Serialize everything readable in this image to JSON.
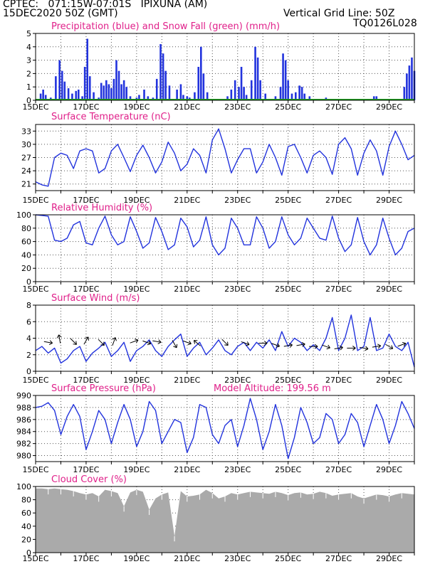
{
  "header": {
    "line1": "CPTEC:   071:15W-07:01S   IPIXUNA (AM)",
    "line2": "15DEC2020 50Z (GMT)",
    "grid_note": "Vertical Grid Line: 50Z",
    "code": "TQ0126L028",
    "altitude": "Model Altitude: 199.56 m",
    "color_header": "#f08a28",
    "color_title": "#e0208a",
    "color_series": "#2233dd"
  },
  "x_axis": {
    "days": [
      "15DEC",
      "17DEC",
      "19DEC",
      "21DEC",
      "23DEC",
      "25DEC",
      "27DEC",
      "29DEC"
    ],
    "start_day": 15,
    "end_day": 30
  },
  "chart_data": [
    {
      "id": "precip",
      "type": "bar",
      "title": "Precipitation (blue) and Snow Fall (green) (mm/h)",
      "ylim": [
        0,
        5
      ],
      "yticks": [
        "0",
        "1",
        "2",
        "3",
        "4",
        "5"
      ],
      "grid": true,
      "series": [
        {
          "name": "precipitation",
          "color": "#2233dd",
          "points": [
            [
              15.2,
              0.5
            ],
            [
              15.3,
              0.8
            ],
            [
              15.4,
              0.4
            ],
            [
              15.6,
              0.2
            ],
            [
              15.8,
              1.8
            ],
            [
              15.95,
              3.0
            ],
            [
              16.05,
              2.2
            ],
            [
              16.15,
              1.4
            ],
            [
              16.3,
              0.9
            ],
            [
              16.45,
              0.5
            ],
            [
              16.6,
              0.7
            ],
            [
              16.7,
              0.8
            ],
            [
              16.85,
              0.3
            ],
            [
              16.95,
              2.5
            ],
            [
              17.05,
              4.6
            ],
            [
              17.15,
              1.8
            ],
            [
              17.3,
              0.6
            ],
            [
              17.5,
              0.2
            ],
            [
              17.6,
              1.3
            ],
            [
              17.7,
              1.1
            ],
            [
              17.8,
              1.5
            ],
            [
              17.9,
              1.2
            ],
            [
              18.0,
              0.9
            ],
            [
              18.1,
              1.6
            ],
            [
              18.2,
              3.0
            ],
            [
              18.3,
              2.2
            ],
            [
              18.4,
              1.2
            ],
            [
              18.5,
              1.5
            ],
            [
              18.6,
              1.0
            ],
            [
              18.75,
              0.3
            ],
            [
              19.0,
              0.2
            ],
            [
              19.1,
              0.4
            ],
            [
              19.3,
              0.8
            ],
            [
              19.45,
              0.3
            ],
            [
              19.65,
              0.2
            ],
            [
              19.8,
              1.6
            ],
            [
              19.95,
              4.2
            ],
            [
              20.05,
              3.5
            ],
            [
              20.15,
              2.2
            ],
            [
              20.3,
              1.1
            ],
            [
              20.6,
              0.8
            ],
            [
              20.75,
              1.2
            ],
            [
              20.85,
              0.4
            ],
            [
              21.0,
              0.3
            ],
            [
              21.1,
              0.2
            ],
            [
              21.3,
              0.6
            ],
            [
              21.45,
              2.5
            ],
            [
              21.55,
              4.0
            ],
            [
              21.65,
              2.0
            ],
            [
              21.8,
              0.6
            ],
            [
              22.6,
              0.3
            ],
            [
              22.75,
              0.8
            ],
            [
              22.9,
              1.5
            ],
            [
              23.05,
              1.0
            ],
            [
              23.15,
              2.5
            ],
            [
              23.25,
              1.0
            ],
            [
              23.35,
              0.4
            ],
            [
              23.55,
              1.5
            ],
            [
              23.7,
              4.0
            ],
            [
              23.8,
              3.2
            ],
            [
              23.9,
              1.5
            ],
            [
              24.1,
              0.5
            ],
            [
              24.5,
              0.3
            ],
            [
              24.7,
              1.0
            ],
            [
              24.8,
              3.5
            ],
            [
              24.9,
              3.0
            ],
            [
              25.0,
              1.5
            ],
            [
              25.15,
              0.5
            ],
            [
              25.3,
              0.6
            ],
            [
              25.45,
              1.1
            ],
            [
              25.55,
              1.0
            ],
            [
              25.65,
              0.5
            ],
            [
              25.85,
              0.3
            ],
            [
              26.5,
              0.2
            ],
            [
              28.4,
              0.3
            ],
            [
              28.5,
              0.3
            ],
            [
              29.6,
              1.0
            ],
            [
              29.7,
              2.0
            ],
            [
              29.8,
              2.6
            ],
            [
              29.9,
              3.2
            ],
            [
              30.0,
              2.2
            ]
          ]
        },
        {
          "name": "snow fall",
          "color": "#22a022",
          "points": []
        }
      ]
    },
    {
      "id": "temp",
      "type": "line",
      "title": "Surface Temperature (nC)",
      "ylim": [
        19.5,
        34.5
      ],
      "yticks": [
        "21",
        "24",
        "27",
        "30",
        "33"
      ],
      "ytick_values": [
        21,
        24,
        27,
        30,
        33
      ],
      "grid": true,
      "x": [
        15.0,
        15.25,
        15.5,
        15.75,
        16.0,
        16.25,
        16.5,
        16.75,
        17.0,
        17.25,
        17.5,
        17.75,
        18.0,
        18.25,
        18.5,
        18.75,
        19.0,
        19.25,
        19.5,
        19.75,
        20.0,
        20.25,
        20.5,
        20.75,
        21.0,
        21.25,
        21.5,
        21.75,
        22.0,
        22.25,
        22.5,
        22.75,
        23.0,
        23.25,
        23.5,
        23.75,
        24.0,
        24.25,
        24.5,
        24.75,
        25.0,
        25.25,
        25.5,
        25.75,
        26.0,
        26.25,
        26.5,
        26.75,
        27.0,
        27.25,
        27.5,
        27.75,
        28.0,
        28.25,
        28.5,
        28.75,
        29.0,
        29.25,
        29.5,
        29.75,
        30.0
      ],
      "y": [
        21.5,
        20.8,
        20.5,
        27.0,
        28.0,
        27.5,
        24.5,
        28.5,
        29.0,
        28.5,
        23.5,
        24.5,
        28.5,
        30.0,
        27.0,
        23.8,
        27.5,
        29.8,
        27.0,
        23.5,
        26.0,
        30.5,
        28.0,
        24.0,
        25.5,
        29.0,
        27.5,
        23.5,
        31.0,
        33.5,
        29.0,
        23.5,
        26.5,
        29.0,
        29.0,
        23.5,
        26.0,
        30.0,
        27.0,
        23.0,
        29.5,
        30.0,
        27.0,
        23.5,
        27.5,
        28.5,
        27.0,
        23.2,
        30.0,
        31.5,
        29.0,
        23.0,
        28.0,
        31.0,
        28.5,
        23.0,
        29.5,
        33.0,
        30.0,
        26.5,
        27.5
      ]
    },
    {
      "id": "rh",
      "type": "line",
      "title": "Relative Humidity (%)",
      "ylim": [
        0,
        100
      ],
      "yticks": [
        "0",
        "20",
        "40",
        "60",
        "80",
        "100"
      ],
      "ytick_values": [
        0,
        20,
        40,
        60,
        80,
        100
      ],
      "grid": true,
      "x": [
        15.0,
        15.25,
        15.5,
        15.75,
        16.0,
        16.25,
        16.5,
        16.75,
        17.0,
        17.25,
        17.5,
        17.75,
        18.0,
        18.25,
        18.5,
        18.75,
        19.0,
        19.25,
        19.5,
        19.75,
        20.0,
        20.25,
        20.5,
        20.75,
        21.0,
        21.25,
        21.5,
        21.75,
        22.0,
        22.25,
        22.5,
        22.75,
        23.0,
        23.25,
        23.5,
        23.75,
        24.0,
        24.25,
        24.5,
        24.75,
        25.0,
        25.25,
        25.5,
        25.75,
        26.0,
        26.25,
        26.5,
        26.75,
        27.0,
        27.25,
        27.5,
        27.75,
        28.0,
        28.25,
        28.5,
        28.75,
        29.0,
        29.25,
        29.5,
        29.75,
        30.0
      ],
      "y": [
        100,
        99,
        98,
        62,
        60,
        65,
        85,
        90,
        58,
        55,
        80,
        98,
        70,
        55,
        60,
        97,
        75,
        50,
        58,
        96,
        75,
        48,
        55,
        95,
        82,
        52,
        62,
        97,
        55,
        40,
        50,
        95,
        80,
        55,
        55,
        97,
        80,
        50,
        60,
        97,
        70,
        55,
        65,
        95,
        80,
        65,
        62,
        98,
        65,
        45,
        55,
        96,
        60,
        40,
        55,
        95,
        65,
        40,
        50,
        75,
        80
      ]
    },
    {
      "id": "wind",
      "type": "line",
      "title": "Surface Wind (m/s)",
      "ylim": [
        0,
        8
      ],
      "yticks": [
        "0",
        "2",
        "4",
        "6",
        "8"
      ],
      "ytick_values": [
        0,
        2,
        4,
        6,
        8
      ],
      "grid": true,
      "x": [
        15.0,
        15.25,
        15.5,
        15.75,
        16.0,
        16.25,
        16.5,
        16.75,
        17.0,
        17.25,
        17.5,
        17.75,
        18.0,
        18.25,
        18.5,
        18.75,
        19.0,
        19.25,
        19.5,
        19.75,
        20.0,
        20.25,
        20.5,
        20.75,
        21.0,
        21.25,
        21.5,
        21.75,
        22.0,
        22.25,
        22.5,
        22.75,
        23.0,
        23.25,
        23.5,
        23.75,
        24.0,
        24.25,
        24.5,
        24.75,
        25.0,
        25.25,
        25.5,
        25.75,
        26.0,
        26.25,
        26.5,
        26.75,
        27.0,
        27.25,
        27.5,
        27.75,
        28.0,
        28.25,
        28.5,
        28.75,
        29.0,
        29.25,
        29.5,
        29.75,
        30.0
      ],
      "y": [
        2.5,
        3.0,
        2.2,
        2.8,
        1.0,
        1.5,
        2.5,
        3.0,
        1.2,
        2.2,
        2.8,
        3.5,
        1.8,
        2.5,
        3.5,
        1.2,
        2.5,
        3.0,
        3.8,
        2.5,
        1.8,
        3.0,
        3.8,
        4.5,
        1.8,
        2.8,
        3.5,
        2.0,
        2.8,
        3.8,
        2.5,
        2.0,
        3.0,
        3.5,
        2.5,
        3.5,
        2.8,
        3.8,
        2.5,
        4.8,
        3.0,
        4.0,
        3.5,
        2.5,
        3.2,
        2.5,
        4.0,
        6.5,
        2.5,
        4.0,
        6.8,
        2.5,
        3.0,
        6.5,
        2.5,
        2.8,
        4.5,
        3.0,
        2.5,
        3.5,
        0.5
      ],
      "arrows": [
        [
          15.5,
          3.5,
          10
        ],
        [
          15.95,
          3.9,
          -100
        ],
        [
          16.5,
          3.6,
          45
        ],
        [
          17.0,
          3.7,
          -60
        ],
        [
          17.6,
          3.5,
          45
        ],
        [
          18.1,
          3.6,
          -70
        ],
        [
          18.9,
          3.6,
          -20
        ],
        [
          19.4,
          3.5,
          20
        ],
        [
          19.8,
          3.6,
          10
        ],
        [
          20.5,
          3.3,
          60
        ],
        [
          21.0,
          3.5,
          20
        ],
        [
          21.4,
          3.4,
          -140
        ],
        [
          22.5,
          3.5,
          45
        ],
        [
          23.3,
          3.4,
          20
        ],
        [
          24.0,
          3.4,
          0
        ],
        [
          24.5,
          3.2,
          20
        ],
        [
          25.0,
          3.1,
          -10
        ],
        [
          25.5,
          3.2,
          -10
        ],
        [
          26.0,
          3.0,
          0
        ],
        [
          26.5,
          3.0,
          20
        ],
        [
          27.0,
          2.8,
          -10
        ],
        [
          27.5,
          2.8,
          0
        ],
        [
          28.0,
          2.8,
          10
        ],
        [
          28.5,
          3.0,
          -10
        ],
        [
          29.0,
          3.0,
          30
        ],
        [
          29.5,
          3.2,
          -20
        ]
      ]
    },
    {
      "id": "pressure",
      "type": "line",
      "title": "Surface Pressure (hPa)",
      "ylim": [
        979,
        990
      ],
      "yticks": [
        "980",
        "982",
        "984",
        "986",
        "988",
        "990"
      ],
      "ytick_values": [
        980,
        982,
        984,
        986,
        988,
        990
      ],
      "grid": true,
      "x": [
        15.0,
        15.25,
        15.5,
        15.75,
        16.0,
        16.25,
        16.5,
        16.75,
        17.0,
        17.25,
        17.5,
        17.75,
        18.0,
        18.25,
        18.5,
        18.75,
        19.0,
        19.25,
        19.5,
        19.75,
        20.0,
        20.25,
        20.5,
        20.75,
        21.0,
        21.25,
        21.5,
        21.75,
        22.0,
        22.25,
        22.5,
        22.75,
        23.0,
        23.25,
        23.5,
        23.75,
        24.0,
        24.25,
        24.5,
        24.75,
        25.0,
        25.25,
        25.5,
        25.75,
        26.0,
        26.25,
        26.5,
        26.75,
        27.0,
        27.25,
        27.5,
        27.75,
        28.0,
        28.25,
        28.5,
        28.75,
        29.0,
        29.25,
        29.5,
        29.75,
        30.0
      ],
      "y": [
        988,
        988.2,
        988.8,
        987.5,
        983.5,
        986.5,
        988.5,
        986.5,
        981,
        984,
        987.5,
        986,
        982,
        985.5,
        988.5,
        986,
        981.5,
        984,
        989,
        987.5,
        982,
        984,
        986,
        985.5,
        980.5,
        983,
        988.5,
        988,
        983.5,
        982,
        985,
        986,
        981.5,
        985,
        989.5,
        986,
        981,
        984,
        988.5,
        985,
        979.5,
        983,
        988,
        985.5,
        982,
        983,
        987,
        986,
        982,
        983.5,
        987,
        985.5,
        981.5,
        985,
        988.5,
        986,
        982,
        985,
        989,
        987,
        984.5
      ]
    },
    {
      "id": "cloud",
      "type": "area",
      "title": "Cloud Cover (%)",
      "ylim": [
        0,
        100
      ],
      "yticks": [
        "0",
        "20",
        "40",
        "60",
        "80",
        "100"
      ],
      "ytick_values": [
        0,
        20,
        40,
        60,
        80,
        100
      ],
      "grid": true,
      "color": "#aaaaaa",
      "x": [
        15.0,
        15.25,
        15.5,
        15.75,
        16.0,
        16.25,
        16.5,
        16.75,
        17.0,
        17.25,
        17.5,
        17.75,
        18.0,
        18.25,
        18.5,
        18.75,
        19.0,
        19.25,
        19.5,
        19.75,
        20.0,
        20.25,
        20.5,
        20.75,
        21.0,
        21.25,
        21.5,
        21.75,
        22.0,
        22.25,
        22.5,
        22.75,
        23.0,
        23.25,
        23.5,
        23.75,
        24.0,
        24.25,
        24.5,
        24.75,
        25.0,
        25.25,
        25.5,
        25.75,
        26.0,
        26.25,
        26.5,
        26.75,
        27.0,
        27.25,
        27.5,
        27.75,
        28.0,
        28.25,
        28.5,
        28.75,
        29.0,
        29.25,
        29.5,
        29.75,
        30.0
      ],
      "y": [
        97,
        97,
        96,
        97,
        96,
        95,
        93,
        90,
        88,
        90,
        85,
        95,
        93,
        90,
        70,
        91,
        95,
        92,
        65,
        82,
        88,
        91,
        25,
        93,
        85,
        86,
        88,
        95,
        90,
        82,
        85,
        90,
        88,
        90,
        92,
        91,
        90,
        89,
        92,
        90,
        87,
        90,
        91,
        88,
        89,
        92,
        90,
        86,
        88,
        89,
        90,
        85,
        82,
        85,
        88,
        87,
        85,
        88,
        90,
        89,
        88
      ]
    }
  ]
}
